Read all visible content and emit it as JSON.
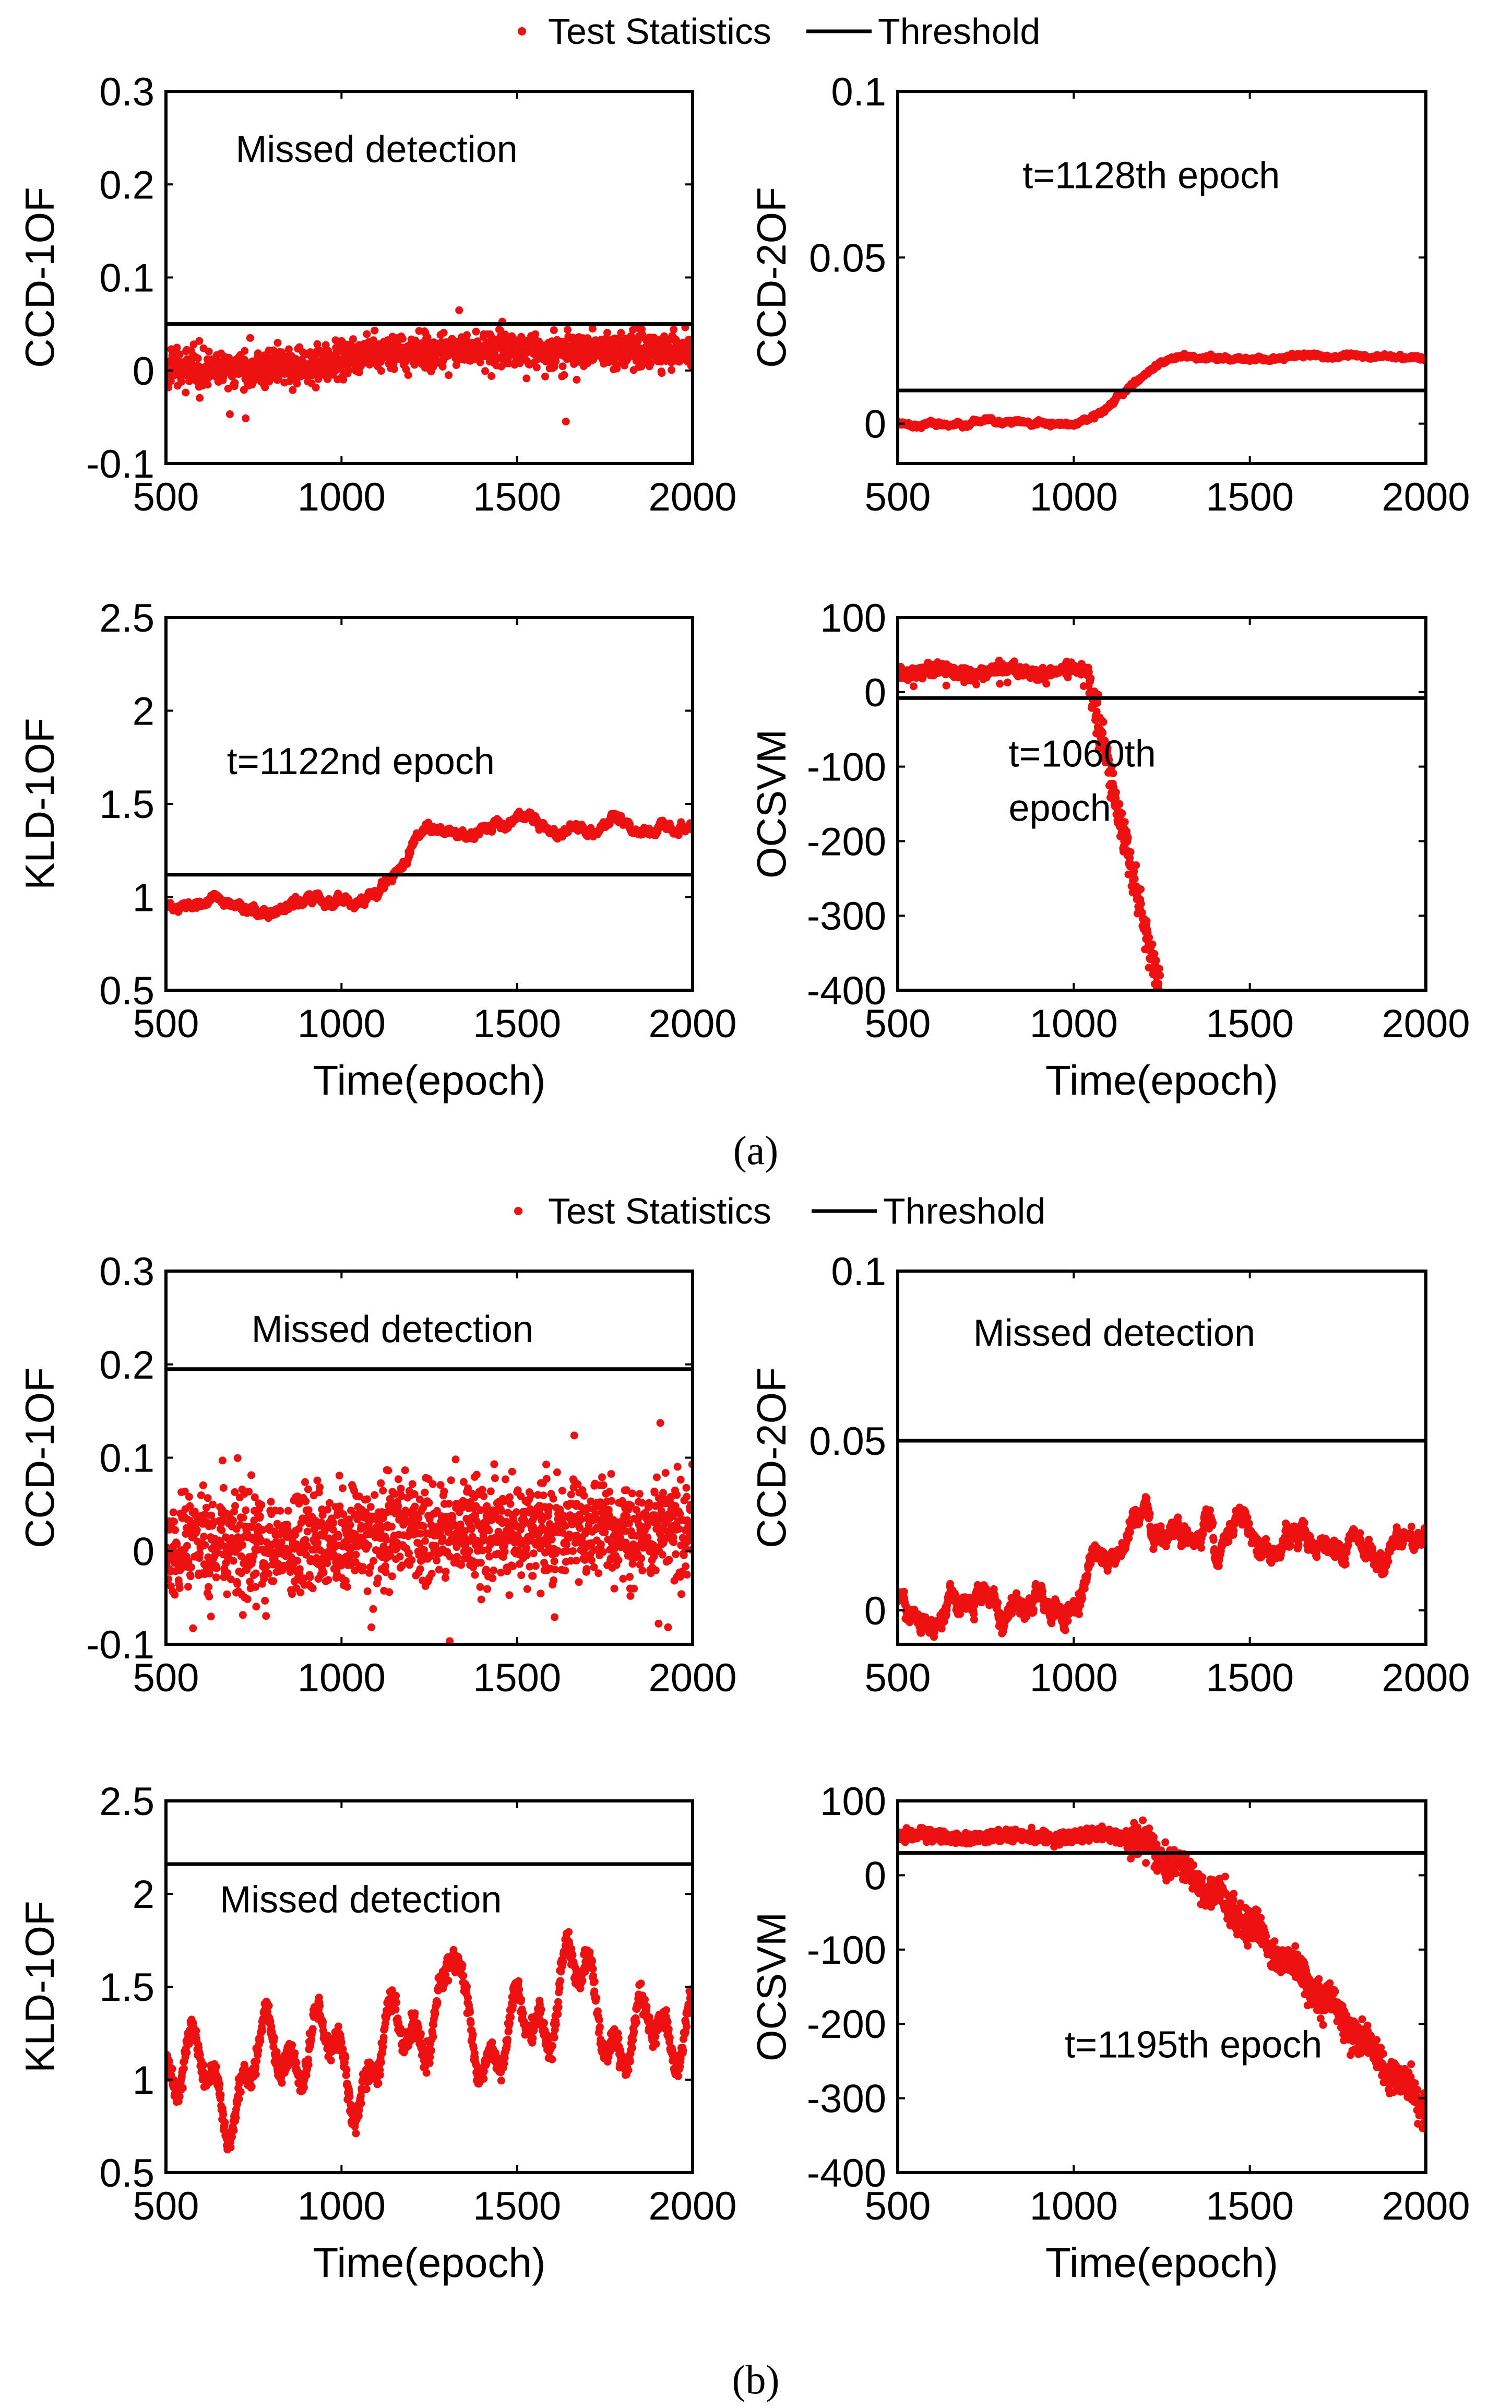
{
  "figure": {
    "legend": {
      "marker_label": "Test Statistics",
      "line_label": "Threshold"
    },
    "panel_labels": [
      "(a)",
      "(b)"
    ],
    "colors": {
      "statistics": "#ee1111",
      "threshold": "#000000",
      "axes": "#000000"
    }
  },
  "chart_data": [
    {
      "id": "a1",
      "type": "scatter",
      "group": "(a)",
      "ylabel": "CCD-1OF",
      "xlabel": "",
      "xlim": [
        500,
        2000
      ],
      "ylim": [
        -0.1,
        0.3
      ],
      "xticks": [
        "500",
        "1000",
        "1500",
        "2000"
      ],
      "yticks": [
        "-0.1",
        "0",
        "0.1",
        "0.2",
        "0.3"
      ],
      "threshold": 0.05,
      "annotation": "Missed detection",
      "series": [
        {
          "name": "Test Statistics",
          "pattern": "noisy_step",
          "x_range": [
            500,
            2000
          ],
          "before": 0.002,
          "after": 0.022,
          "change_at": 1000,
          "noise": 0.009
        }
      ]
    },
    {
      "id": "a2",
      "type": "scatter",
      "group": "(a)",
      "ylabel": "CCD-2OF",
      "xlabel": "",
      "xlim": [
        500,
        2000
      ],
      "ylim": [
        -0.012,
        0.1
      ],
      "xticks": [
        "500",
        "1000",
        "1500",
        "2000"
      ],
      "yticks": [
        "0",
        "0.05",
        "0.1"
      ],
      "threshold": 0.01,
      "annotation": "t=1128th epoch",
      "series": [
        {
          "name": "Test Statistics",
          "pattern": "smooth_rise",
          "x_range": [
            500,
            2000
          ],
          "before": 0.0,
          "after": 0.02,
          "change_at": 1000,
          "plateau_at": 1300
        }
      ]
    },
    {
      "id": "a3",
      "type": "scatter",
      "group": "(a)",
      "ylabel": "KLD-1OF",
      "xlabel": "Time(epoch)",
      "xlim": [
        500,
        2000
      ],
      "ylim": [
        0.5,
        2.5
      ],
      "xticks": [
        "500",
        "1000",
        "1500",
        "2000"
      ],
      "yticks": [
        "0.5",
        "1",
        "1.5",
        "2",
        "2.5"
      ],
      "threshold": 1.12,
      "annotation": "t=1122nd epoch",
      "series": [
        {
          "name": "Test Statistics",
          "pattern": "wavy_rise",
          "x_range": [
            500,
            2000
          ],
          "before": 0.98,
          "after": 1.37,
          "change_at": 1050,
          "plateau_at": 1350
        }
      ]
    },
    {
      "id": "a4",
      "type": "scatter",
      "group": "(a)",
      "ylabel": "OCSVM",
      "xlabel": "Time(epoch)",
      "xlim": [
        500,
        2000
      ],
      "ylim": [
        -400,
        100
      ],
      "xticks": [
        "500",
        "1000",
        "1500",
        "2000"
      ],
      "yticks": [
        "-400",
        "-300",
        "-200",
        "-100",
        "0",
        "100"
      ],
      "threshold": -8,
      "annotation": "t=1060th\nepoch",
      "series": [
        {
          "name": "Test Statistics",
          "pattern": "steep_drop",
          "x_range": [
            500,
            1245
          ],
          "before": 28,
          "after": -400,
          "change_at": 1040
        }
      ]
    },
    {
      "id": "b1",
      "type": "scatter",
      "group": "(b)",
      "ylabel": "CCD-1OF",
      "xlabel": "",
      "xlim": [
        500,
        2000
      ],
      "ylim": [
        -0.1,
        0.3
      ],
      "xticks": [
        "500",
        "1000",
        "1500",
        "2000"
      ],
      "yticks": [
        "-0.1",
        "0",
        "0.1",
        "0.2",
        "0.3"
      ],
      "threshold": 0.195,
      "annotation": "Missed detection",
      "series": [
        {
          "name": "Test Statistics",
          "pattern": "noisy_step",
          "x_range": [
            500,
            2000
          ],
          "before": 0.005,
          "after": 0.02,
          "change_at": 1000,
          "noise": 0.028
        }
      ]
    },
    {
      "id": "b2",
      "type": "scatter",
      "group": "(b)",
      "ylabel": "CCD-2OF",
      "xlabel": "",
      "xlim": [
        500,
        2000
      ],
      "ylim": [
        -0.01,
        0.1
      ],
      "xticks": [
        "500",
        "1000",
        "1500",
        "2000"
      ],
      "yticks": [
        "0",
        "0.05",
        "0.1"
      ],
      "threshold": 0.05,
      "annotation": "Missed detection",
      "series": [
        {
          "name": "Test Statistics",
          "pattern": "wavy_step",
          "x_range": [
            500,
            2000
          ],
          "before": 0.0,
          "after": 0.019,
          "change_at": 1000
        }
      ]
    },
    {
      "id": "b3",
      "type": "scatter",
      "group": "(b)",
      "ylabel": "KLD-1OF",
      "xlabel": "Time(epoch)",
      "xlim": [
        500,
        2000
      ],
      "ylim": [
        0.5,
        2.5
      ],
      "xticks": [
        "500",
        "1000",
        "1500",
        "2000"
      ],
      "yticks": [
        "0.5",
        "1",
        "1.5",
        "2",
        "2.5"
      ],
      "threshold": 2.16,
      "annotation": "Missed detection",
      "series": [
        {
          "name": "Test Statistics",
          "pattern": "oscillating",
          "x_range": [
            500,
            2000
          ],
          "before": 1.05,
          "after": 1.32,
          "change_at": 1100
        }
      ]
    },
    {
      "id": "b4",
      "type": "scatter",
      "group": "(b)",
      "ylabel": "OCSVM",
      "xlabel": "Time(epoch)",
      "xlim": [
        500,
        2000
      ],
      "ylim": [
        -400,
        100
      ],
      "xticks": [
        "500",
        "1000",
        "1500",
        "2000"
      ],
      "yticks": [
        "-400",
        "-300",
        "-200",
        "-100",
        "0",
        "100"
      ],
      "threshold": 30,
      "annotation": "t=1195th epoch",
      "series": [
        {
          "name": "Test Statistics",
          "pattern": "gradual_drop",
          "x_range": [
            500,
            2000
          ],
          "before": 52,
          "after": -315,
          "change_at": 1150
        }
      ]
    }
  ]
}
